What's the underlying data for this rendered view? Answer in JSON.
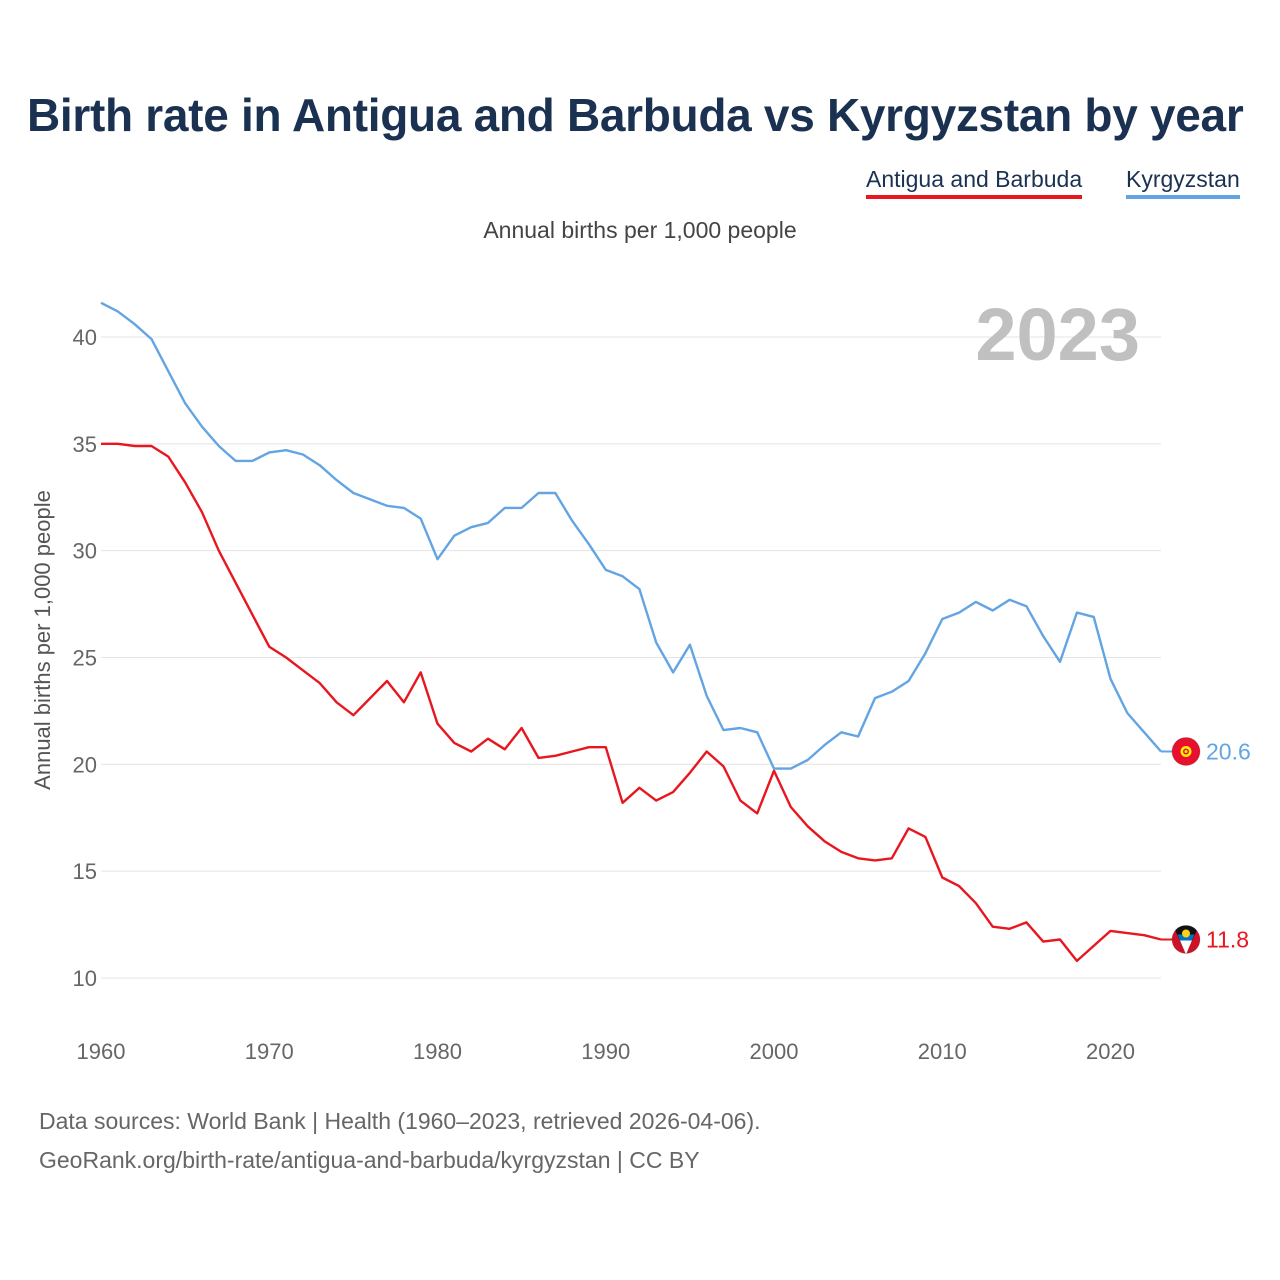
{
  "title": "Birth rate in Antigua and Barbuda vs Kyrgyzstan by year",
  "subtitle": "Annual births per 1,000 people",
  "legend": [
    {
      "label": "Antigua and Barbuda",
      "color": "#e8171f"
    },
    {
      "label": "Kyrgyzstan",
      "color": "#63a4e3"
    }
  ],
  "year_overlay": "2023",
  "source": {
    "line1": "Data sources: World Bank | Health (1960–2023, retrieved 2026-04-06).",
    "line2": "GeoRank.org/birth-rate/antigua-and-barbuda/kyrgyzstan | CC BY"
  },
  "chart_data": {
    "type": "line",
    "title": "Birth rate in Antigua and Barbuda vs Kyrgyzstan by year",
    "subtitle": "Annual births per 1,000 people",
    "xlabel": "",
    "ylabel": "Annual births per 1,000 people",
    "xlim": [
      1960,
      2023
    ],
    "ylim": [
      8.5,
      42.2
    ],
    "xticks": [
      1960,
      1970,
      1980,
      1990,
      2000,
      2010,
      2020
    ],
    "yticks": [
      10,
      15,
      20,
      25,
      30,
      35,
      40
    ],
    "grid": "horizontal",
    "legend_position": "top-right",
    "x": [
      1960,
      1961,
      1962,
      1963,
      1964,
      1965,
      1966,
      1967,
      1968,
      1969,
      1970,
      1971,
      1972,
      1973,
      1974,
      1975,
      1976,
      1977,
      1978,
      1979,
      1980,
      1981,
      1982,
      1983,
      1984,
      1985,
      1986,
      1987,
      1988,
      1989,
      1990,
      1991,
      1992,
      1993,
      1994,
      1995,
      1996,
      1997,
      1998,
      1999,
      2000,
      2001,
      2002,
      2003,
      2004,
      2005,
      2006,
      2007,
      2008,
      2009,
      2010,
      2011,
      2012,
      2013,
      2014,
      2015,
      2016,
      2017,
      2018,
      2019,
      2020,
      2021,
      2022,
      2023
    ],
    "series": [
      {
        "name": "Antigua and Barbuda",
        "color": "#e8171f",
        "end_label": "11.8",
        "values": [
          35.0,
          35.0,
          34.9,
          34.9,
          34.4,
          33.2,
          31.8,
          30.0,
          28.5,
          27.0,
          25.5,
          25.0,
          24.4,
          23.8,
          22.9,
          22.3,
          23.1,
          23.9,
          22.9,
          24.3,
          21.9,
          21.0,
          20.6,
          21.2,
          20.7,
          21.7,
          20.3,
          20.4,
          20.6,
          20.8,
          20.8,
          18.2,
          18.9,
          18.3,
          18.7,
          19.6,
          20.6,
          19.9,
          18.3,
          17.7,
          19.7,
          18.0,
          17.1,
          16.4,
          15.9,
          15.6,
          15.5,
          15.6,
          17.0,
          16.6,
          14.7,
          14.3,
          13.5,
          12.4,
          12.3,
          12.6,
          11.7,
          11.8,
          10.8,
          11.5,
          12.2,
          12.1,
          12.0,
          11.8
        ]
      },
      {
        "name": "Kyrgyzstan",
        "color": "#63a4e3",
        "end_label": "20.6",
        "values": [
          41.6,
          41.2,
          40.6,
          39.9,
          38.4,
          36.9,
          35.8,
          34.9,
          34.2,
          34.2,
          34.6,
          34.7,
          34.5,
          34.0,
          33.3,
          32.7,
          32.4,
          32.1,
          32.0,
          31.5,
          29.6,
          30.7,
          31.1,
          31.3,
          32.0,
          32.0,
          32.7,
          32.7,
          31.4,
          30.3,
          29.1,
          28.8,
          28.2,
          25.7,
          24.3,
          25.6,
          23.2,
          21.6,
          21.7,
          21.5,
          19.8,
          19.8,
          20.2,
          20.9,
          21.5,
          21.3,
          23.1,
          23.4,
          23.9,
          25.2,
          26.8,
          27.1,
          27.6,
          27.2,
          27.7,
          27.4,
          26.0,
          24.8,
          27.1,
          26.9,
          24.0,
          22.4,
          21.5,
          20.6
        ]
      }
    ]
  }
}
